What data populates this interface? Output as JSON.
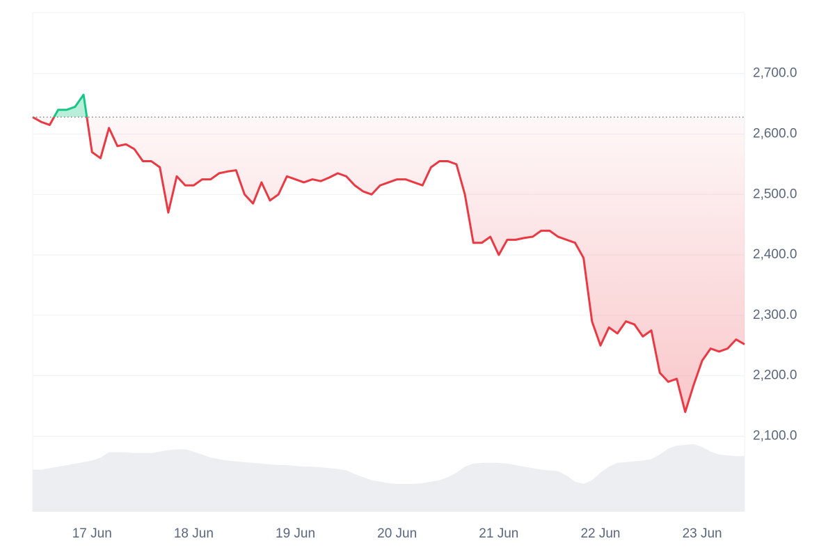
{
  "chart_data": {
    "type": "price-line",
    "categories": [
      null,
      null,
      null,
      null,
      null,
      null,
      null,
      "17 Jun",
      null,
      null,
      null,
      null,
      null,
      null,
      null,
      null,
      null,
      null,
      null,
      "18 Jun",
      null,
      null,
      null,
      null,
      null,
      null,
      null,
      null,
      null,
      null,
      null,
      "19 Jun",
      null,
      null,
      null,
      null,
      null,
      null,
      null,
      null,
      null,
      null,
      null,
      "20 Jun",
      null,
      null,
      null,
      null,
      null,
      null,
      null,
      null,
      null,
      null,
      null,
      "21 Jun",
      null,
      null,
      null,
      null,
      null,
      null,
      null,
      null,
      null,
      null,
      null,
      "22 Jun",
      null,
      null,
      null,
      null,
      null,
      null,
      null,
      null,
      null,
      null,
      null,
      "23 Jun",
      null,
      null,
      null,
      null,
      null
    ],
    "values": [
      2628,
      2620,
      2615,
      2640,
      2640,
      2645,
      2665,
      2570,
      2560,
      2610,
      2580,
      2583,
      2575,
      2555,
      2555,
      2545,
      2470,
      2530,
      2515,
      2515,
      2525,
      2525,
      2535,
      2538,
      2540,
      2500,
      2485,
      2520,
      2490,
      2500,
      2530,
      2525,
      2520,
      2525,
      2522,
      2528,
      2535,
      2530,
      2515,
      2505,
      2500,
      2515,
      2520,
      2525,
      2525,
      2520,
      2515,
      2545,
      2555,
      2555,
      2550,
      2500,
      2420,
      2420,
      2430,
      2400,
      2425,
      2425,
      2428,
      2430,
      2440,
      2440,
      2430,
      2425,
      2420,
      2395,
      2290,
      2250,
      2280,
      2270,
      2290,
      2285,
      2265,
      2275,
      2205,
      2190,
      2195,
      2140,
      2185,
      2225,
      2245,
      2240,
      2245,
      2260,
      2252
    ],
    "volume": [
      56,
      56,
      58,
      60,
      62,
      64,
      66,
      68,
      72,
      79,
      79,
      79,
      78,
      78,
      78,
      80,
      82,
      83,
      83,
      80,
      76,
      72,
      70,
      68,
      67,
      66,
      65,
      64,
      63,
      62,
      62,
      61,
      60,
      60,
      59,
      58,
      57,
      55,
      50,
      46,
      42,
      40,
      38,
      37,
      37,
      37,
      38,
      40,
      42,
      46,
      52,
      60,
      64,
      65,
      65,
      65,
      64,
      62,
      60,
      58,
      56,
      55,
      54,
      48,
      40,
      37,
      42,
      52,
      60,
      65,
      66,
      67,
      68,
      70,
      76,
      84,
      88,
      89,
      90,
      86,
      80,
      76,
      75,
      74,
      74
    ],
    "vlim": [
      0,
      100
    ],
    "ylim": [
      1975,
      2801
    ],
    "yticks": [
      {
        "value": 2100,
        "label": "2,100.0"
      },
      {
        "value": 2200,
        "label": "2,200.0"
      },
      {
        "value": 2300,
        "label": "2,300.0"
      },
      {
        "value": 2400,
        "label": "2,400.0"
      },
      {
        "value": 2500,
        "label": "2,500.0"
      },
      {
        "value": 2600,
        "label": "2,600.0"
      },
      {
        "value": 2700,
        "label": "2,700.0"
      }
    ],
    "grid": true,
    "colors": {
      "up": "#16c784",
      "down": "#ea3943",
      "volume": "#eceef2"
    }
  }
}
